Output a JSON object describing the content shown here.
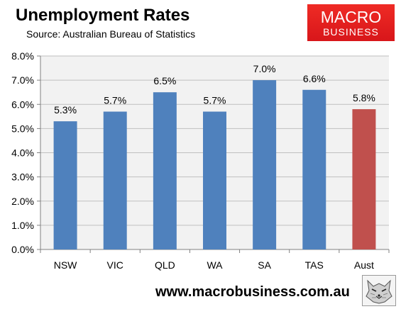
{
  "header": {
    "title": "Unemployment Rates",
    "subtitle": "Source: Australian Bureau of Statistics"
  },
  "logo": {
    "line1": "MACRO",
    "line2": "BUSINESS",
    "color": "#e01f21"
  },
  "footer": {
    "url": "www.macrobusiness.com.au",
    "icon": "wolf-logo-icon"
  },
  "colors": {
    "bar_default": "#4f81bd",
    "bar_highlight": "#c0504d",
    "plot_background": "#f2f2f2",
    "gridline": "#bfbfbf"
  },
  "chart_data": {
    "type": "bar",
    "categories": [
      "NSW",
      "VIC",
      "QLD",
      "WA",
      "SA",
      "TAS",
      "Aust"
    ],
    "values": [
      5.3,
      5.7,
      6.5,
      5.7,
      7.0,
      6.6,
      5.8
    ],
    "data_labels": [
      "5.3%",
      "5.7%",
      "6.5%",
      "5.7%",
      "7.0%",
      "6.6%",
      "5.8%"
    ],
    "highlight_category": "Aust",
    "ylim": [
      0,
      8
    ],
    "yticks": [
      0,
      1,
      2,
      3,
      4,
      5,
      6,
      7,
      8
    ],
    "ytick_labels": [
      "0.0%",
      "1.0%",
      "2.0%",
      "3.0%",
      "4.0%",
      "5.0%",
      "6.0%",
      "7.0%",
      "8.0%"
    ],
    "grid": true,
    "legend": false,
    "title": "Unemployment Rates",
    "xlabel": "",
    "ylabel": ""
  }
}
